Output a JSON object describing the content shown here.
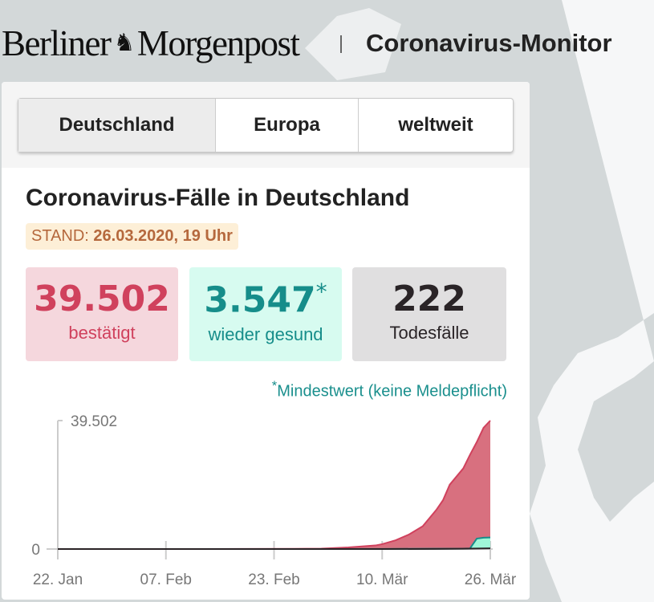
{
  "header": {
    "logo": "Berliner Morgenpost",
    "title": "Coronavirus-Monitor"
  },
  "tabs": [
    {
      "label": "Deutschland",
      "active": true
    },
    {
      "label": "Europa"
    },
    {
      "label": "weltweit"
    }
  ],
  "heading": "Coronavirus-Fälle in Deutschland",
  "stand": {
    "label": "STAND:",
    "value": "26.03.2020, 19 Uhr"
  },
  "stats": {
    "confirmed": {
      "value": "39.502",
      "label": "bestätigt"
    },
    "recovered": {
      "value": "3.547",
      "marker": "*",
      "label": "wieder gesund"
    },
    "deaths": {
      "value": "222",
      "label": "Todesfälle"
    }
  },
  "footnote": {
    "marker": "*",
    "text": "Mindestwert (keine Meldepflicht)"
  },
  "colors": {
    "confirmed": "#d0415d",
    "recovered": "#168d8a",
    "deaths": "#2a2427"
  },
  "chart_data": {
    "type": "area",
    "start": "2020-01-22",
    "end": "2020-03-26",
    "ylim": [
      0,
      39502
    ],
    "ytick_labels": [
      "0",
      "39.502"
    ],
    "xtick_labels": [
      {
        "label": "22. Jan",
        "day": 0
      },
      {
        "label": "07. Feb",
        "day": 16
      },
      {
        "label": "23. Feb",
        "day": 32
      },
      {
        "label": "10. Mär",
        "day": 48
      },
      {
        "label": "26. Mär",
        "day": 64
      }
    ],
    "series": [
      {
        "name": "bestätigt",
        "points": [
          [
            0,
            0
          ],
          [
            27,
            16
          ],
          [
            35,
            60
          ],
          [
            39,
            130
          ],
          [
            43,
            500
          ],
          [
            47,
            1100
          ],
          [
            48,
            1500
          ],
          [
            50,
            2700
          ],
          [
            52,
            4500
          ],
          [
            54,
            7000
          ],
          [
            56,
            12000
          ],
          [
            57,
            15000
          ],
          [
            58,
            19800
          ],
          [
            59,
            22300
          ],
          [
            60,
            24800
          ],
          [
            61,
            29000
          ],
          [
            62,
            32900
          ],
          [
            63,
            37300
          ],
          [
            64,
            39502
          ]
        ]
      },
      {
        "name": "wieder gesund",
        "points": [
          [
            0,
            0
          ],
          [
            22,
            0
          ],
          [
            30,
            14
          ],
          [
            48,
            16
          ],
          [
            60,
            120
          ],
          [
            61,
            200
          ],
          [
            62,
            3200
          ],
          [
            63,
            3500
          ],
          [
            64,
            3547
          ]
        ]
      },
      {
        "name": "Todesfälle",
        "points": [
          [
            0,
            0
          ],
          [
            48,
            2
          ],
          [
            56,
            30
          ],
          [
            60,
            90
          ],
          [
            62,
            150
          ],
          [
            64,
            222
          ]
        ]
      }
    ]
  }
}
